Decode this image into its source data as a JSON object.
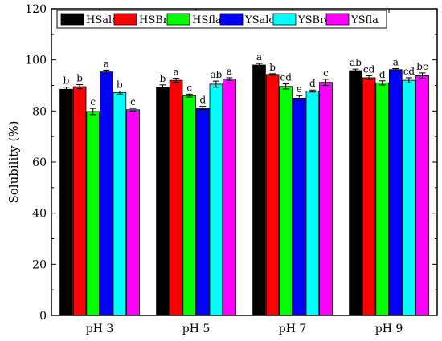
{
  "chart_data": {
    "type": "bar",
    "ylabel": "Solubility (%)",
    "xlabel": "",
    "ylim": [
      0,
      120
    ],
    "yticks": [
      0,
      20,
      40,
      60,
      80,
      100,
      120
    ],
    "categories": [
      "pH 3",
      "pH 5",
      "pH 7",
      "pH 9"
    ],
    "legend_position": "top",
    "series": [
      {
        "name": "HSalc",
        "color": "#000000",
        "values": [
          88.5,
          89.2,
          98.0,
          95.8
        ],
        "errors": [
          0.8,
          1.0,
          0.6,
          0.6
        ],
        "letters": [
          "b",
          "b",
          "a",
          "ab"
        ]
      },
      {
        "name": "HSBro",
        "color": "#ff0000",
        "values": [
          89.5,
          92.0,
          94.3,
          93.0
        ],
        "errors": [
          0.8,
          0.8,
          0.3,
          0.8
        ],
        "letters": [
          "b",
          "a",
          "b",
          "cd"
        ]
      },
      {
        "name": "HSfla",
        "color": "#00ff00",
        "values": [
          79.8,
          86.0,
          89.6,
          91.0
        ],
        "errors": [
          1.2,
          0.6,
          1.0,
          0.8
        ],
        "letters": [
          "c",
          "c",
          "cd",
          "d"
        ]
      },
      {
        "name": "YSalc",
        "color": "#0000ff",
        "values": [
          95.3,
          81.2,
          85.0,
          96.2
        ],
        "errors": [
          0.7,
          0.6,
          1.0,
          0.4
        ],
        "letters": [
          "a",
          "d",
          "e",
          "a"
        ]
      },
      {
        "name": "YSBro",
        "color": "#00ffff",
        "values": [
          87.2,
          90.5,
          87.8,
          92.0
        ],
        "errors": [
          0.6,
          1.2,
          0.4,
          1.0
        ],
        "letters": [
          "b",
          "ab",
          "d",
          "cd"
        ]
      },
      {
        "name": "YSfla",
        "color": "#ff00ff",
        "values": [
          80.5,
          92.5,
          91.2,
          93.8
        ],
        "errors": [
          0.5,
          0.5,
          1.2,
          1.1
        ],
        "letters": [
          "c",
          "a",
          "c",
          "bc"
        ]
      }
    ]
  }
}
